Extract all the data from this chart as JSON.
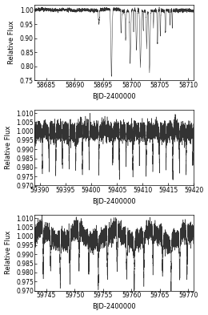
{
  "panel1": {
    "xmin": 58683,
    "xmax": 58711,
    "ymin": 0.75,
    "ymax": 1.02,
    "yticks": [
      0.75,
      0.8,
      0.85,
      0.9,
      0.95,
      1.0
    ],
    "xticks": [
      58685,
      58690,
      58695,
      58700,
      58705,
      58710
    ],
    "xlabel": "BJD-2400000",
    "ylabel": "Relative Flux",
    "n_points": 2800,
    "noise_std": 0.003,
    "dip_centers": [
      58694.3,
      58696.5,
      58698.2,
      58699.0,
      58699.8,
      58700.4,
      58700.9,
      58701.6,
      58702.1,
      58702.7,
      58703.2,
      58703.9,
      58704.6,
      58705.1,
      58706.0,
      58706.8,
      58707.2
    ],
    "dip_depths": [
      0.05,
      0.24,
      0.08,
      0.1,
      0.18,
      0.08,
      0.14,
      0.2,
      0.07,
      0.13,
      0.22,
      0.06,
      0.12,
      0.09,
      0.08,
      0.05,
      0.06
    ],
    "dip_widths": [
      0.08,
      0.1,
      0.06,
      0.07,
      0.09,
      0.05,
      0.08,
      0.1,
      0.05,
      0.07,
      0.09,
      0.04,
      0.06,
      0.05,
      0.06,
      0.04,
      0.04
    ]
  },
  "panel2": {
    "xmin": 59389,
    "xmax": 59420,
    "ymin": 0.97,
    "ymax": 1.012,
    "yticks": [
      0.97,
      0.975,
      0.98,
      0.985,
      0.99,
      0.995,
      1.0,
      1.005,
      1.01
    ],
    "xticks": [
      59390,
      59395,
      59400,
      59405,
      59410,
      59415,
      59420
    ],
    "xlabel": "BJD-2400000",
    "ylabel": "Relative Flux",
    "n_points": 6000,
    "noise_std": 0.0025,
    "baseline_smooth": 80,
    "baseline_amp": 0.002,
    "dip_centers": [
      59390.5,
      59391.8,
      59393.1,
      59394.4,
      59395.7,
      59397.0,
      59398.3,
      59399.6,
      59401.5,
      59404.2,
      59405.5,
      59406.8,
      59408.1,
      59409.4,
      59410.7,
      59412.0,
      59413.3,
      59414.6,
      59415.9,
      59417.2,
      59418.5,
      59419.8
    ],
    "dip_depths": [
      0.02,
      0.016,
      0.022,
      0.018,
      0.02,
      0.016,
      0.022,
      0.018,
      0.02,
      0.016,
      0.022,
      0.018,
      0.02,
      0.016,
      0.022,
      0.018,
      0.02,
      0.016,
      0.022,
      0.018,
      0.02,
      0.016
    ],
    "dip_widths": [
      0.05,
      0.05,
      0.05,
      0.05,
      0.05,
      0.05,
      0.05,
      0.05,
      0.05,
      0.05,
      0.05,
      0.05,
      0.05,
      0.05,
      0.05,
      0.05,
      0.05,
      0.05,
      0.05,
      0.05,
      0.05,
      0.05
    ]
  },
  "panel3": {
    "xmin": 59743,
    "xmax": 59771,
    "ymin": 0.97,
    "ymax": 1.012,
    "yticks": [
      0.97,
      0.975,
      0.98,
      0.985,
      0.99,
      0.995,
      1.0,
      1.005,
      1.01
    ],
    "xticks": [
      59745,
      59750,
      59755,
      59760,
      59765,
      59770
    ],
    "xlabel": "BJD-2400000",
    "ylabel": "Relative Flux",
    "n_points": 5600,
    "noise_std": 0.0025,
    "baseline_smooth": 80,
    "baseline_amp": 0.003,
    "dip_centers": [
      59744.5,
      59745.8,
      59747.5,
      59749.2,
      59750.8,
      59752.5,
      59754.2,
      59755.8,
      59757.5,
      59759.2,
      59760.5,
      59762.2,
      59763.8,
      59765.5,
      59767.0,
      59768.5,
      59769.8
    ],
    "dip_depths": [
      0.022,
      0.018,
      0.025,
      0.022,
      0.02,
      0.018,
      0.025,
      0.022,
      0.02,
      0.018,
      0.025,
      0.022,
      0.02,
      0.018,
      0.025,
      0.022,
      0.02
    ],
    "dip_widths": [
      0.06,
      0.06,
      0.06,
      0.06,
      0.06,
      0.06,
      0.06,
      0.06,
      0.06,
      0.06,
      0.06,
      0.06,
      0.06,
      0.06,
      0.06,
      0.06,
      0.06
    ]
  },
  "line_color": "#333333",
  "linewidth": 0.35,
  "background": "#ffffff",
  "tick_labelsize": 5.5,
  "axis_labelsize": 6.0
}
